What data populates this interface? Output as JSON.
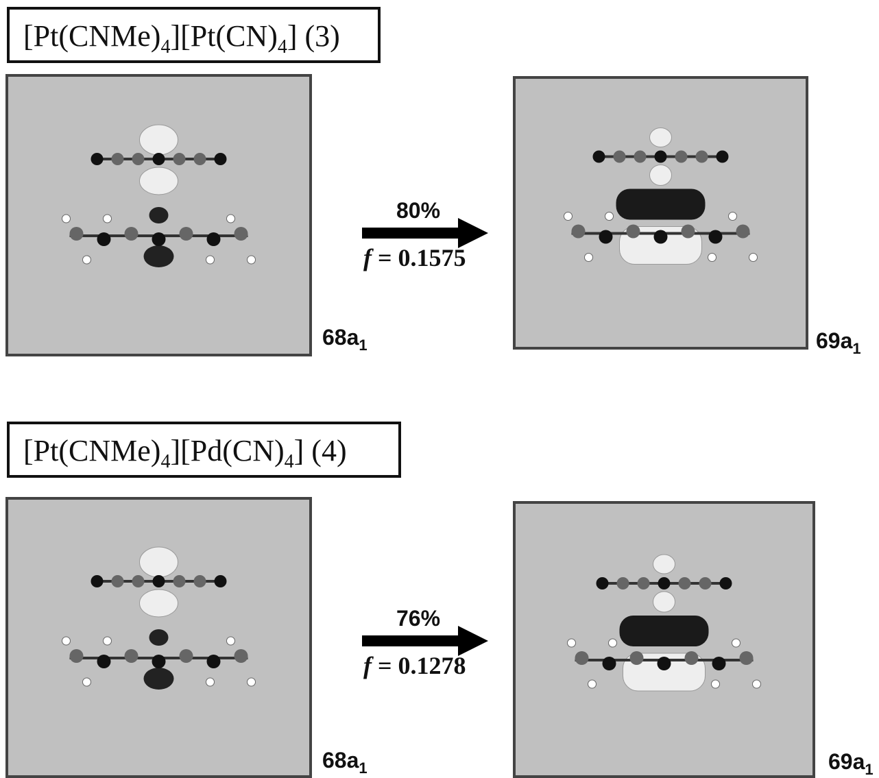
{
  "panels": [
    {
      "title": [
        "[Pt(CNMe)",
        "4",
        "][Pt(CN)",
        "4",
        "]  (3)"
      ],
      "from_orbital": {
        "main": "68a",
        "sub": "1"
      },
      "to_orbital": {
        "main": "69a",
        "sub": "1"
      },
      "percent": "80%",
      "oscillator": {
        "symbol": "f",
        "text": " = 0.1575"
      }
    },
    {
      "title": [
        "[Pt(CNMe)",
        "4",
        "][Pd(CN)",
        "4",
        "]  (4)"
      ],
      "from_orbital": {
        "main": "68a",
        "sub": "1"
      },
      "to_orbital": {
        "main": "69a",
        "sub": "1"
      },
      "percent": "76%",
      "oscillator": {
        "symbol": "f",
        "text": " = 0.1278"
      }
    }
  ]
}
